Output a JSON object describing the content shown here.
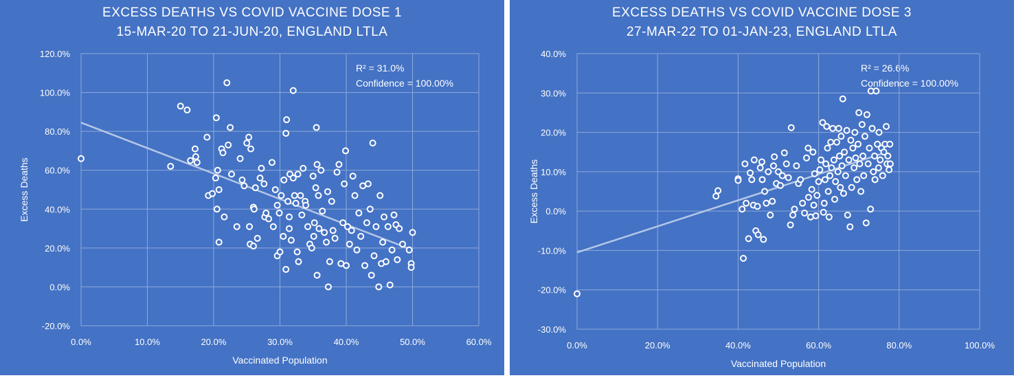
{
  "charts": [
    {
      "title_line1": "EXCESS DEATHS VS COVID VACCINE DOSE 1",
      "title_line2": "15-MAR-20 TO 21-JUN-20, ENGLAND LTLA",
      "r2_label": "R² = 31.0%",
      "confidence_label": "Confidence = 100.00%"
    },
    {
      "title_line1": "EXCESS DEATHS VS COVID VACCINE DOSE 3",
      "title_line2": "27-MAR-22 TO 01-JAN-23, ENGLAND LTLA",
      "r2_label": "R² = 26.6%",
      "confidence_label": "Confidence = 100.00%"
    }
  ],
  "colors": {
    "background": "#4472c4",
    "marker_stroke": "#ffffff",
    "trendline": "#b4c7e7",
    "gridline": "#8eaadb"
  },
  "chart_data": [
    {
      "type": "scatter",
      "title": "EXCESS DEATHS VS COVID VACCINE DOSE 1\n15-MAR-20 TO 21-JUN-20, ENGLAND LTLA",
      "xlabel": "Vaccinated Population",
      "ylabel": "Excess Deaths",
      "xlim": [
        0,
        60
      ],
      "ylim": [
        -20,
        120
      ],
      "x_ticks": [
        0,
        10,
        20,
        30,
        40,
        50,
        60
      ],
      "y_ticks": [
        -20,
        0,
        20,
        40,
        60,
        80,
        100,
        120
      ],
      "x_tick_labels": [
        "0.0%",
        "10.0%",
        "20.0%",
        "30.0%",
        "40.0%",
        "50.0%",
        "60.0%"
      ],
      "y_tick_labels": [
        "-20.0%",
        "0.0%",
        "20.0%",
        "40.0%",
        "60.0%",
        "80.0%",
        "100.0%",
        "120.0%"
      ],
      "grid": true,
      "trendline": {
        "x": [
          0,
          50
        ],
        "y": [
          84.5,
          19
        ]
      },
      "annotations": [
        "R² = 31.0%",
        "Confidence = 100.00%"
      ],
      "points": [
        [
          0,
          66
        ],
        [
          13.5,
          62
        ],
        [
          15,
          93
        ],
        [
          16,
          91
        ],
        [
          16.5,
          65
        ],
        [
          17.2,
          71
        ],
        [
          17.3,
          67
        ],
        [
          17.5,
          64
        ],
        [
          19,
          77
        ],
        [
          19.2,
          47
        ],
        [
          19.8,
          48
        ],
        [
          20.3,
          56
        ],
        [
          20.4,
          87
        ],
        [
          20.6,
          60
        ],
        [
          20.5,
          40
        ],
        [
          20.8,
          50
        ],
        [
          20.8,
          23
        ],
        [
          21.2,
          71
        ],
        [
          21.4,
          69
        ],
        [
          21.6,
          36
        ],
        [
          22,
          105
        ],
        [
          22.2,
          73
        ],
        [
          22.5,
          82
        ],
        [
          22.7,
          58
        ],
        [
          23.5,
          31
        ],
        [
          24,
          66
        ],
        [
          24.3,
          55
        ],
        [
          24.6,
          52
        ],
        [
          25,
          74
        ],
        [
          25.3,
          77
        ],
        [
          25.6,
          71
        ],
        [
          25.4,
          31
        ],
        [
          25.5,
          22
        ],
        [
          26,
          41
        ],
        [
          26.1,
          40
        ],
        [
          26,
          21
        ],
        [
          26.3,
          51
        ],
        [
          26.6,
          25
        ],
        [
          27,
          56
        ],
        [
          27.2,
          61
        ],
        [
          27.6,
          53
        ],
        [
          27.7,
          36
        ],
        [
          27.9,
          38
        ],
        [
          28.3,
          35
        ],
        [
          28.8,
          64
        ],
        [
          29,
          31
        ],
        [
          29.3,
          50
        ],
        [
          29.6,
          42
        ],
        [
          29.6,
          16
        ],
        [
          29.9,
          38
        ],
        [
          30,
          18
        ],
        [
          30.2,
          47
        ],
        [
          30.5,
          26
        ],
        [
          30.6,
          55
        ],
        [
          30.9,
          79
        ],
        [
          31,
          86
        ],
        [
          30.9,
          9
        ],
        [
          31.2,
          44
        ],
        [
          31.4,
          36
        ],
        [
          31.4,
          30
        ],
        [
          31.5,
          58
        ],
        [
          31.7,
          24
        ],
        [
          32,
          56
        ],
        [
          32,
          101
        ],
        [
          32.2,
          47
        ],
        [
          32.4,
          43
        ],
        [
          32.6,
          18
        ],
        [
          32.7,
          58
        ],
        [
          32.8,
          13
        ],
        [
          33.1,
          47
        ],
        [
          33.3,
          37
        ],
        [
          33.5,
          61
        ],
        [
          33.8,
          44
        ],
        [
          33.9,
          42
        ],
        [
          34.2,
          31
        ],
        [
          34.5,
          22
        ],
        [
          34.8,
          20
        ],
        [
          35,
          57
        ],
        [
          35.1,
          26
        ],
        [
          35.2,
          33
        ],
        [
          35.4,
          51
        ],
        [
          35.6,
          63
        ],
        [
          35.5,
          82
        ],
        [
          35.6,
          6
        ],
        [
          35.8,
          47
        ],
        [
          35.9,
          30
        ],
        [
          36.2,
          60
        ],
        [
          36.4,
          39
        ],
        [
          36.7,
          28
        ],
        [
          37,
          23
        ],
        [
          37.2,
          49
        ],
        [
          37.3,
          0
        ],
        [
          37.5,
          13
        ],
        [
          37.8,
          44
        ],
        [
          38,
          29
        ],
        [
          38.3,
          25
        ],
        [
          38.6,
          59
        ],
        [
          38.9,
          63
        ],
        [
          39.2,
          12
        ],
        [
          39.5,
          33
        ],
        [
          39.7,
          53
        ],
        [
          39.9,
          70
        ],
        [
          40,
          11
        ],
        [
          40.2,
          31
        ],
        [
          40.5,
          22
        ],
        [
          40.8,
          29
        ],
        [
          41,
          57
        ],
        [
          41.3,
          47
        ],
        [
          41.6,
          19
        ],
        [
          41.9,
          38
        ],
        [
          42.2,
          26
        ],
        [
          42.5,
          52
        ],
        [
          42.8,
          11
        ],
        [
          43.1,
          33
        ],
        [
          43.3,
          53
        ],
        [
          43.6,
          40
        ],
        [
          43.8,
          6
        ],
        [
          44,
          74
        ],
        [
          44.2,
          16
        ],
        [
          44.5,
          31
        ],
        [
          44.9,
          0
        ],
        [
          45.1,
          47
        ],
        [
          45.3,
          12
        ],
        [
          45.5,
          23
        ],
        [
          45.7,
          36
        ],
        [
          46,
          13
        ],
        [
          46.3,
          31
        ],
        [
          46.6,
          1
        ],
        [
          46.9,
          19
        ],
        [
          47.2,
          37
        ],
        [
          47.5,
          32
        ],
        [
          47.7,
          14
        ],
        [
          48,
          30
        ],
        [
          48.5,
          22
        ],
        [
          49.5,
          19
        ],
        [
          49.8,
          12
        ],
        [
          49.8,
          10
        ],
        [
          50,
          28
        ]
      ]
    },
    {
      "type": "scatter",
      "title": "EXCESS DEATHS VS COVID VACCINE DOSE 3\n27-MAR-22 TO 01-JAN-23, ENGLAND LTLA",
      "xlabel": "Vaccinated Population",
      "ylabel": "Excess Deaths",
      "xlim": [
        0,
        100
      ],
      "ylim": [
        -30,
        40
      ],
      "x_ticks": [
        0,
        20,
        40,
        60,
        80,
        100
      ],
      "y_ticks": [
        -30,
        -20,
        -10,
        0,
        10,
        20,
        30,
        40
      ],
      "x_tick_labels": [
        "0.0%",
        "20.0%",
        "40.0%",
        "60.0%",
        "80.0%",
        "100.0%"
      ],
      "y_tick_labels": [
        "-30.0%",
        "-20.0%",
        "-10.0%",
        "0.0%",
        "10.0%",
        "20.0%",
        "30.0%",
        "40.0%"
      ],
      "grid": true,
      "trendline": {
        "x": [
          0,
          77
        ],
        "y": [
          -10.5,
          15
        ]
      },
      "annotations": [
        "R² = 26.6%",
        "Confidence = 100.00%"
      ],
      "points": [
        [
          0,
          -21
        ],
        [
          34.5,
          3.8
        ],
        [
          35,
          5.2
        ],
        [
          40,
          8.2
        ],
        [
          40,
          7.8
        ],
        [
          41,
          0.5
        ],
        [
          41.3,
          -12
        ],
        [
          41.7,
          12
        ],
        [
          42,
          2
        ],
        [
          42.6,
          -7
        ],
        [
          43,
          9.7
        ],
        [
          43.4,
          8
        ],
        [
          43.8,
          1.5
        ],
        [
          44,
          13
        ],
        [
          44.4,
          -5
        ],
        [
          44.8,
          1.2
        ],
        [
          45,
          -6
        ],
        [
          45.5,
          11
        ],
        [
          45.9,
          12.5
        ],
        [
          46,
          8
        ],
        [
          46.3,
          -7.2
        ],
        [
          46.6,
          5
        ],
        [
          47,
          2
        ],
        [
          47.5,
          10
        ],
        [
          48,
          -1
        ],
        [
          48.5,
          2.5
        ],
        [
          48.8,
          11.5
        ],
        [
          49,
          13.8
        ],
        [
          49.5,
          7
        ],
        [
          50,
          10
        ],
        [
          50.5,
          6.5
        ],
        [
          51,
          9
        ],
        [
          51.5,
          14.8
        ],
        [
          52,
          12
        ],
        [
          52.5,
          8.5
        ],
        [
          53,
          -3.5
        ],
        [
          53.2,
          21.2
        ],
        [
          53.6,
          -1
        ],
        [
          54,
          0.5
        ],
        [
          54.5,
          11.5
        ],
        [
          55,
          7
        ],
        [
          55.5,
          8
        ],
        [
          56,
          2
        ],
        [
          56.5,
          -0.5
        ],
        [
          57,
          13.5
        ],
        [
          57.4,
          16
        ],
        [
          57.5,
          3.5
        ],
        [
          58,
          -1.5
        ],
        [
          58.3,
          5.5
        ],
        [
          58.6,
          15
        ],
        [
          58.8,
          1.5
        ],
        [
          59,
          9.5
        ],
        [
          59.3,
          -1.2
        ],
        [
          59.6,
          4
        ],
        [
          60,
          7.5
        ],
        [
          60.3,
          10.5
        ],
        [
          60.6,
          13
        ],
        [
          61,
          22.5
        ],
        [
          61.2,
          -0.3
        ],
        [
          61.4,
          2
        ],
        [
          61.6,
          8
        ],
        [
          61.8,
          12
        ],
        [
          62,
          21.5
        ],
        [
          62.2,
          16
        ],
        [
          62.4,
          5
        ],
        [
          62.6,
          -1.5
        ],
        [
          62.8,
          9
        ],
        [
          63,
          17.5
        ],
        [
          63.2,
          11
        ],
        [
          63.5,
          21
        ],
        [
          63.8,
          13
        ],
        [
          64,
          3
        ],
        [
          64.2,
          7.5
        ],
        [
          64.5,
          17.5
        ],
        [
          64.8,
          10
        ],
        [
          65,
          21
        ],
        [
          65.2,
          14
        ],
        [
          65.4,
          6
        ],
        [
          65.6,
          19
        ],
        [
          65.8,
          11.5
        ],
        [
          66,
          28.5
        ],
        [
          66.2,
          4.5
        ],
        [
          66.4,
          15
        ],
        [
          66.7,
          9
        ],
        [
          67,
          20.5
        ],
        [
          67.2,
          -1
        ],
        [
          67.5,
          13
        ],
        [
          67.8,
          -4
        ],
        [
          68,
          18
        ],
        [
          68.2,
          6
        ],
        [
          68.5,
          16
        ],
        [
          68.8,
          11
        ],
        [
          69,
          20
        ],
        [
          69.2,
          13.5
        ],
        [
          69.5,
          8
        ],
        [
          69.8,
          17
        ],
        [
          70,
          25
        ],
        [
          70.2,
          12
        ],
        [
          70.5,
          5
        ],
        [
          70.8,
          22
        ],
        [
          71,
          14
        ],
        [
          71.2,
          9
        ],
        [
          71.5,
          19
        ],
        [
          71.8,
          -3
        ],
        [
          72,
          24.5
        ],
        [
          72.3,
          12
        ],
        [
          72.6,
          16
        ],
        [
          72.9,
          0.5
        ],
        [
          73,
          30.5
        ],
        [
          73.3,
          21
        ],
        [
          73.6,
          10
        ],
        [
          73.9,
          14
        ],
        [
          74,
          8
        ],
        [
          74.3,
          30.5
        ],
        [
          74.6,
          17
        ],
        [
          74.9,
          11
        ],
        [
          75,
          20
        ],
        [
          75.3,
          13
        ],
        [
          75.6,
          16
        ],
        [
          75.9,
          9
        ],
        [
          76.2,
          15
        ],
        [
          76.5,
          17
        ],
        [
          76.8,
          21.5
        ],
        [
          77,
          12
        ],
        [
          77.2,
          14
        ],
        [
          77.5,
          10.5
        ],
        [
          77.7,
          17
        ],
        [
          77.8,
          12
        ]
      ]
    }
  ]
}
